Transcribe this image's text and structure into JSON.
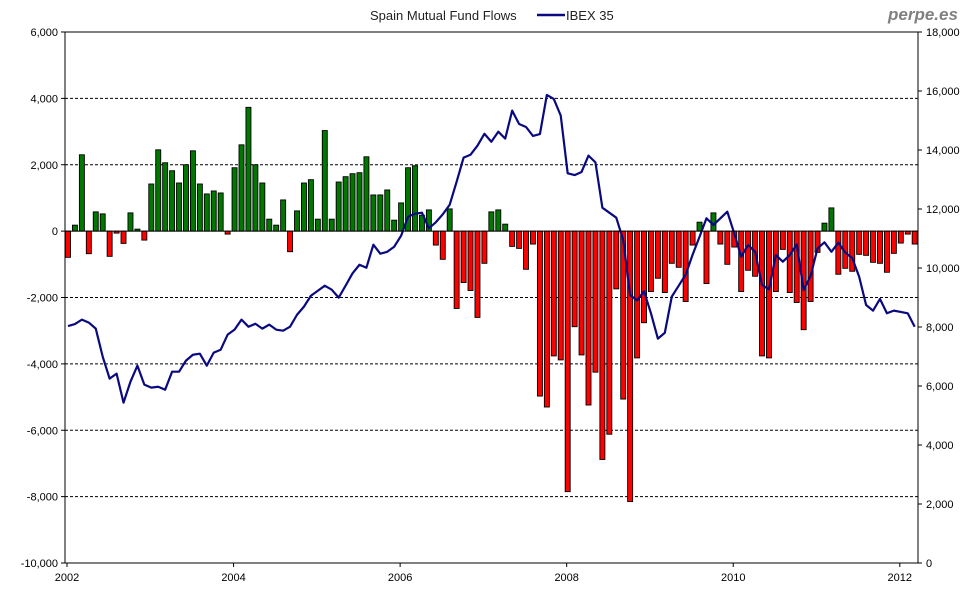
{
  "chart_data": {
    "type": "bar+line",
    "title": "",
    "brand": "perpe.es",
    "legend": {
      "bars_label": "Spain Mutual Fund Flows",
      "line_label": "IBEX 35",
      "placement": "top-center"
    },
    "x_start": "2002-01",
    "frequency": "monthly",
    "x_tick_labels": [
      "2002",
      "2004",
      "2006",
      "2008",
      "2010",
      "2012"
    ],
    "y_left": {
      "range": [
        -10000,
        6000
      ],
      "step": 2000,
      "tick_labels": [
        "6,000",
        "4,000",
        "2,000",
        "0",
        "-2,000",
        "-4,000",
        "-6,000",
        "-8,000",
        "-10,000"
      ]
    },
    "y_right": {
      "range": [
        0,
        18000
      ],
      "step": 2000,
      "tick_labels": [
        "18,000",
        "16,000",
        "14,000",
        "12,000",
        "10,000",
        "8,000",
        "6,000",
        "4,000",
        "2,000",
        "0"
      ]
    },
    "grid": "horizontal dashed at left-axis ticks",
    "colors": {
      "positive": "#007800",
      "negative": "#ff0000",
      "line": "#0a0a80",
      "bar_border": "#000000"
    },
    "series": [
      {
        "name": "Spain Mutual Fund Flows",
        "axis": "left",
        "kind": "bar",
        "values": [
          -790,
          180,
          2300,
          -680,
          580,
          520,
          -760,
          -60,
          -370,
          550,
          60,
          -270,
          1420,
          2450,
          2060,
          1820,
          1450,
          2000,
          2420,
          1420,
          1120,
          1210,
          1150,
          -90,
          1910,
          2600,
          3730,
          2000,
          1450,
          360,
          180,
          940,
          -620,
          610,
          1450,
          1550,
          360,
          3030,
          360,
          1480,
          1640,
          1730,
          1760,
          2240,
          1090,
          1090,
          1240,
          330,
          850,
          1910,
          1970,
          480,
          640,
          -420,
          -850,
          670,
          -2330,
          -1550,
          -1790,
          -2600,
          -970,
          580,
          640,
          210,
          -460,
          -520,
          -1150,
          -390,
          -4970,
          -5300,
          -3760,
          -3880,
          -7850,
          -2880,
          -3730,
          -5240,
          -4250,
          -6880,
          -6120,
          -1740,
          -5060,
          -8150,
          -3820,
          -2760,
          -1820,
          -1420,
          -1850,
          -970,
          -1090,
          -2120,
          -420,
          270,
          -1580,
          550,
          -390,
          -1000,
          -480,
          -1820,
          -1180,
          -1360,
          -3760,
          -3820,
          -1820,
          -550,
          -1850,
          -2150,
          -2970,
          -2120,
          -640,
          240,
          700,
          -1300,
          -1120,
          -1210,
          -700,
          -730,
          -940,
          -970,
          -1240,
          -670,
          -360,
          -90,
          -390
        ]
      },
      {
        "name": "IBEX 35",
        "axis": "right",
        "kind": "line",
        "values": [
          8030,
          8100,
          8250,
          8150,
          7945,
          6995,
          6250,
          6420,
          5435,
          6145,
          6690,
          6045,
          5945,
          5975,
          5875,
          6485,
          6485,
          6860,
          7060,
          7095,
          6690,
          7130,
          7230,
          7740,
          7910,
          8250,
          8010,
          8110,
          7945,
          8080,
          7910,
          7875,
          8010,
          8415,
          8690,
          9060,
          9230,
          9400,
          9265,
          8995,
          9400,
          9820,
          10110,
          10010,
          10790,
          10485,
          10550,
          10720,
          11095,
          11740,
          11840,
          11875,
          11345,
          11550,
          11820,
          12145,
          12925,
          13740,
          13840,
          14145,
          14550,
          14280,
          14620,
          14385,
          15335,
          14880,
          14780,
          14475,
          14540,
          15865,
          15730,
          15165,
          13210,
          13150,
          13255,
          13810,
          13580,
          12045,
          11875,
          11705,
          10950,
          9075,
          8905,
          9210,
          8465,
          7605,
          7805,
          9030,
          9400,
          9775,
          10450,
          11060,
          11685,
          11460,
          11685,
          11910,
          11175,
          10385,
          10780,
          10550,
          9425,
          9275,
          10440,
          10215,
          10440,
          10800,
          9255,
          9730,
          10665,
          10870,
          10550,
          10860,
          10520,
          10340,
          9705,
          8745,
          8555,
          8950,
          8465,
          8555,
          8510,
          8465,
          8010
        ]
      }
    ]
  }
}
